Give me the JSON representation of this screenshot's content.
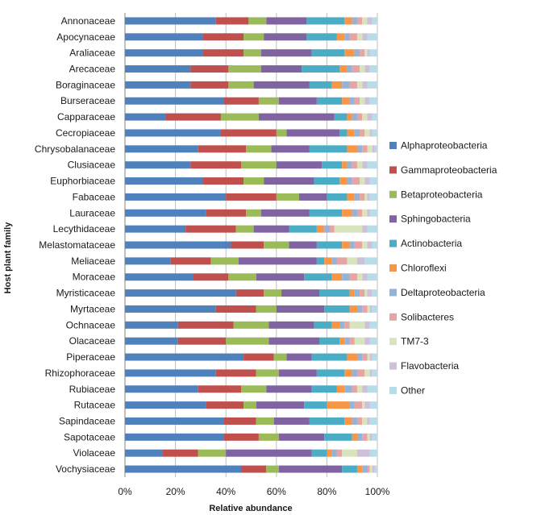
{
  "chart_data": {
    "type": "bar",
    "orientation": "horizontal",
    "stacked": true,
    "percent": true,
    "xlabel": "Relative abundance",
    "ylabel": "Host plant family",
    "xlim": [
      0,
      100
    ],
    "xticks": [
      "0%",
      "20%",
      "40%",
      "60%",
      "80%",
      "100%"
    ],
    "grid": "vertical",
    "legend_position": "right",
    "categories": [
      "Annonaceae",
      "Apocynaceae",
      "Araliaceae",
      "Arecaceae",
      "Boraginaceae",
      "Burseraceae",
      "Capparaceae",
      "Cecropiaceae",
      "Chrysobalanaceae",
      "Clusiaceae",
      "Euphorbiaceae",
      "Fabaceae",
      "Lauraceae",
      "Lecythidaceae",
      "Melastomataceae",
      "Meliaceae",
      "Moraceae",
      "Myristicaceae",
      "Myrtaceae",
      "Ochnaceae",
      "Olacaceae",
      "Piperaceae",
      "Rhizophoraceae",
      "Rubiaceae",
      "Rutaceae",
      "Sapindaceae",
      "Sapotaceae",
      "Violaceae",
      "Vochysiaceae"
    ],
    "series": [
      {
        "name": "Alphaproteobacteria",
        "color": "#4f81bd",
        "values": [
          36,
          31,
          31,
          26,
          26,
          39,
          16,
          38,
          29,
          26,
          31,
          40,
          32,
          24,
          42,
          18,
          27,
          44,
          36,
          21,
          21,
          47,
          36,
          29,
          32,
          39,
          39,
          15,
          46
        ]
      },
      {
        "name": "Gammaproteobacteria",
        "color": "#c0504d",
        "values": [
          13,
          16,
          16,
          15,
          15,
          14,
          22,
          22,
          19,
          20,
          16,
          20,
          16,
          20,
          13,
          16,
          14,
          11,
          16,
          22,
          19,
          12,
          16,
          17,
          15,
          13,
          14,
          14,
          10
        ]
      },
      {
        "name": "Betaproteobacteria",
        "color": "#9bbb59",
        "values": [
          7,
          8,
          7,
          13,
          10,
          8,
          15,
          4,
          10,
          14,
          8,
          9,
          6,
          7,
          10,
          11,
          11,
          7,
          8,
          14,
          17,
          5,
          9,
          10,
          5,
          7,
          8,
          11,
          5
        ]
      },
      {
        "name": "Sphingobacteria",
        "color": "#8064a2",
        "values": [
          16,
          17,
          20,
          16,
          22,
          15,
          30,
          21,
          15,
          18,
          20,
          11,
          19,
          14,
          11,
          31,
          19,
          15,
          19,
          18,
          20,
          10,
          15,
          18,
          19,
          14,
          18,
          34,
          25
        ]
      },
      {
        "name": "Actinobacteria",
        "color": "#4bacc6",
        "values": [
          15,
          12,
          13,
          15,
          9,
          10,
          5,
          3,
          15,
          8,
          10,
          8,
          13,
          11,
          10,
          3,
          11,
          12,
          10,
          7,
          8,
          14,
          11,
          10,
          9,
          14,
          11,
          6,
          6
        ]
      },
      {
        "name": "Chloroflexi",
        "color": "#f79646",
        "values": [
          3,
          3,
          4,
          3,
          4,
          3,
          2,
          3,
          4,
          2,
          3,
          3,
          4,
          3,
          3,
          3,
          4,
          2,
          3,
          3,
          2,
          4,
          3,
          3,
          9,
          3,
          2,
          2,
          2
        ]
      },
      {
        "name": "Deltaproteobacteria",
        "color": "#95b3d7",
        "values": [
          2,
          2,
          2,
          2,
          3,
          2,
          2,
          2,
          2,
          2,
          2,
          2,
          2,
          2,
          2,
          2,
          3,
          2,
          2,
          2,
          2,
          2,
          2,
          3,
          2,
          2,
          2,
          2,
          2
        ]
      },
      {
        "name": "Solibacteres",
        "color": "#e6a5a3",
        "values": [
          2,
          3,
          2,
          3,
          3,
          2,
          2,
          2,
          2,
          2,
          3,
          2,
          2,
          2,
          3,
          4,
          3,
          2,
          2,
          2,
          2,
          2,
          3,
          2,
          3,
          2,
          2,
          2,
          1
        ]
      },
      {
        "name": "TM7-3",
        "color": "#d7e4bc",
        "values": [
          2,
          2,
          1,
          2,
          2,
          2,
          2,
          2,
          2,
          2,
          2,
          1,
          2,
          11,
          2,
          4,
          2,
          1,
          1,
          6,
          4,
          1,
          2,
          2,
          1,
          2,
          1,
          6,
          1
        ]
      },
      {
        "name": "Flavobacteria",
        "color": "#ccc0da",
        "values": [
          2,
          2,
          1,
          2,
          2,
          2,
          2,
          1,
          1,
          2,
          2,
          1,
          1,
          2,
          2,
          3,
          2,
          2,
          1,
          2,
          2,
          1,
          1,
          2,
          2,
          1,
          1,
          5,
          1
        ]
      },
      {
        "name": "Other",
        "color": "#b7dee8",
        "values": [
          2,
          4,
          3,
          3,
          4,
          3,
          2,
          2,
          1,
          4,
          3,
          3,
          3,
          4,
          2,
          5,
          4,
          2,
          2,
          3,
          3,
          2,
          2,
          4,
          3,
          3,
          2,
          3,
          1
        ]
      }
    ]
  }
}
